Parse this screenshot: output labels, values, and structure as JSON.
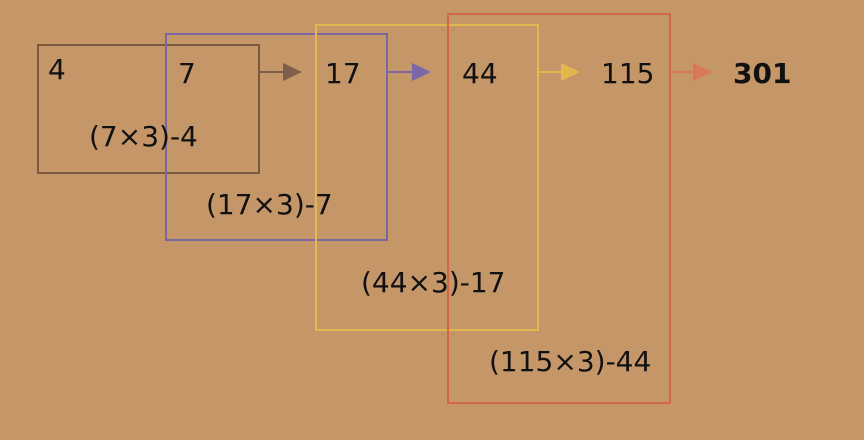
{
  "colors": {
    "background": "#c49668",
    "box_brown": "#7a5a3c",
    "box_purple": "#7a66a0",
    "box_yellow": "#e2b84e",
    "box_red": "#d2664a",
    "arrow_brown": "#7e6048",
    "arrow_purple": "#7a66a8",
    "arrow_yellow": "#e2b84e",
    "arrow_red": "#d8785a",
    "result": "#cc2222",
    "text": "#111111"
  },
  "sequence": {
    "terms": [
      "4",
      "7",
      "17",
      "44",
      "115"
    ],
    "result": "301"
  },
  "formulas": [
    "(7×3)-4",
    "(17×3)-7",
    "(44×3)-17",
    "(115×3)-44"
  ]
}
